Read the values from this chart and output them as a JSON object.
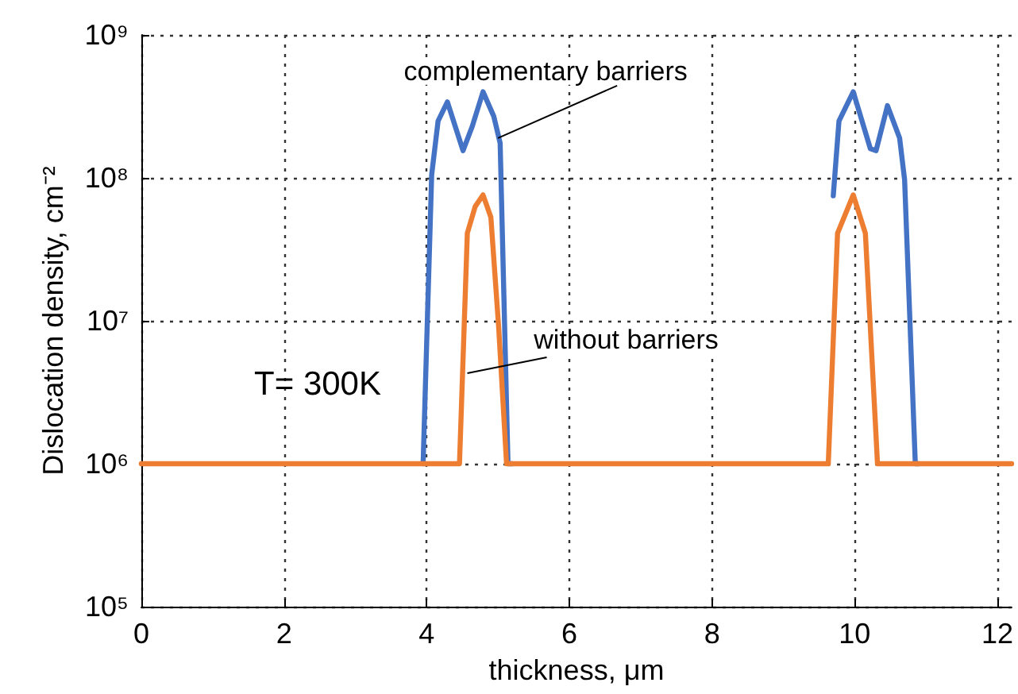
{
  "chart_data": {
    "type": "line",
    "xlabel": "thickness, μm",
    "ylabel": "Dislocation density, cm⁻²",
    "log": "y",
    "grid": true,
    "marker": "none",
    "line_style": "solid",
    "xlim": [
      0,
      12.2
    ],
    "xticks": [
      0,
      2,
      4,
      6,
      8,
      10,
      12
    ],
    "ylim": [
      100000,
      1000000000
    ],
    "yticks": [
      {
        "value": 100000,
        "label": "10⁵"
      },
      {
        "value": 1000000,
        "label": "10⁶"
      },
      {
        "value": 10000000,
        "label": "10⁷"
      },
      {
        "value": 100000000,
        "label": "10⁸"
      },
      {
        "value": 1000000000,
        "label": "10⁹"
      }
    ],
    "series": [
      {
        "color": "#4472c4",
        "x": [
          3.95,
          4.07,
          4.16,
          4.29,
          4.51,
          4.64,
          4.79,
          4.94,
          5.03,
          5.14,
          5.2
        ],
        "values": [
          1000000,
          105000000,
          250000000,
          340000000,
          155000000,
          230000000,
          400000000,
          270000000,
          175000000,
          1000000,
          1000000
        ]
      },
      {
        "color": "#4472c4",
        "x": [
          9.7,
          9.78,
          9.98,
          10.22,
          10.3,
          10.46,
          10.63,
          10.7,
          10.85,
          10.9
        ],
        "values": [
          75000000,
          250000000,
          400000000,
          160000000,
          155000000,
          320000000,
          190000000,
          97000000,
          1000000,
          1000000
        ]
      },
      {
        "color": "#ed7d31",
        "x": [
          0,
          4.46,
          4.57,
          4.68,
          4.79,
          4.9,
          5.01,
          5.12,
          9.63,
          9.76,
          9.98,
          10.15,
          10.32,
          12.2
        ],
        "values": [
          1000000,
          1000000,
          41000000,
          63000000,
          76000000,
          53000000,
          8900000,
          1000000,
          1000000,
          41000000,
          76000000,
          41000000,
          1000000,
          1000000
        ]
      }
    ],
    "annotations": [
      {
        "text": "complementary barriers",
        "x": 5.0,
        "y": 190000000
      },
      {
        "text": "without barriers",
        "x": 4.57,
        "y": 4300000
      },
      "T= 300K"
    ]
  }
}
